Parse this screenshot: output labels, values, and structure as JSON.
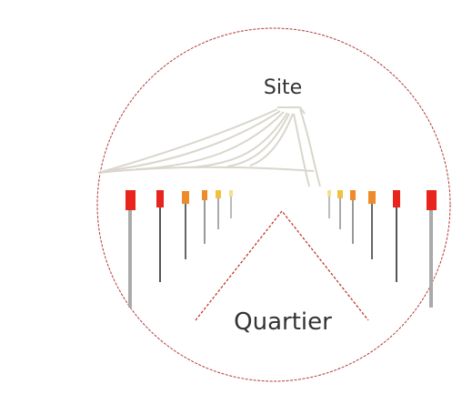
{
  "labels": {
    "site": "Site",
    "quartier": "Quartier"
  }
}
